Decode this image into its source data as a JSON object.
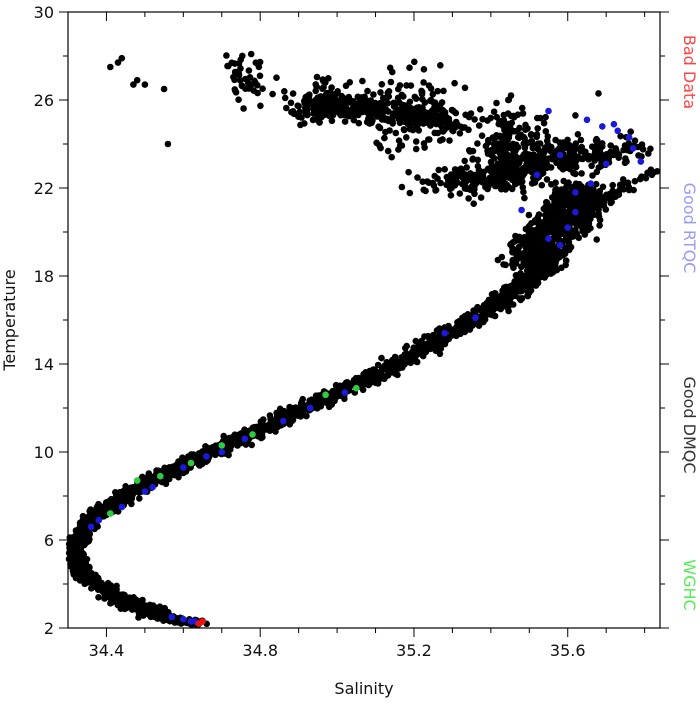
{
  "chart_data": {
    "type": "scatter",
    "xlabel": "Salinity",
    "ylabel": "Temperature",
    "xlim": [
      34.3,
      35.84
    ],
    "ylim": [
      2,
      30
    ],
    "xticks": [
      34.4,
      34.8,
      35.2,
      35.6
    ],
    "xtick_labels": [
      "34.4",
      "34.8",
      "35.2",
      "35.6"
    ],
    "yticks": [
      2,
      6,
      10,
      14,
      18,
      22,
      26,
      30
    ],
    "ytick_labels": [
      "2",
      "6",
      "10",
      "14",
      "18",
      "22",
      "26",
      "30"
    ],
    "x_minor_step": 0.1,
    "y_minor_step": 2,
    "grid": false,
    "legend_position": "right-side vertical",
    "legend": [
      {
        "label": "Bad Data",
        "color": "#ff4444"
      },
      {
        "label": "Good RTQC",
        "color": "#9a9aff"
      },
      {
        "label": "Good DMQC",
        "color": "#333333"
      },
      {
        "label": "WGHC",
        "color": "#55ee55"
      }
    ],
    "series": [
      {
        "name": "Good DMQC",
        "color": "#000000",
        "bands": [
          {
            "from": [
              34.64,
              2.2
            ],
            "to": [
              34.55,
              2.5
            ],
            "width": 0.05,
            "count": 90
          },
          {
            "from": [
              34.55,
              2.5
            ],
            "to": [
              34.42,
              3.4
            ],
            "width": 0.09,
            "count": 150
          },
          {
            "from": [
              34.42,
              3.4
            ],
            "to": [
              34.33,
              4.6
            ],
            "width": 0.06,
            "count": 140
          },
          {
            "from": [
              34.33,
              4.6
            ],
            "to": [
              34.32,
              5.8
            ],
            "width": 0.05,
            "count": 110
          },
          {
            "from": [
              34.32,
              5.8
            ],
            "to": [
              34.36,
              7.0
            ],
            "width": 0.06,
            "count": 110
          },
          {
            "from": [
              34.36,
              7.0
            ],
            "to": [
              34.55,
              9.0
            ],
            "width": 0.07,
            "count": 240
          },
          {
            "from": [
              34.55,
              9.0
            ],
            "to": [
              34.8,
              11.0
            ],
            "width": 0.08,
            "count": 260
          },
          {
            "from": [
              34.8,
              11.0
            ],
            "to": [
              35.1,
              13.5
            ],
            "width": 0.08,
            "count": 300
          },
          {
            "from": [
              35.1,
              13.5
            ],
            "to": [
              35.4,
              16.5
            ],
            "width": 0.08,
            "count": 300
          },
          {
            "from": [
              35.4,
              16.5
            ],
            "to": [
              35.55,
              18.5
            ],
            "width": 0.08,
            "count": 250
          },
          {
            "from": [
              35.5,
              18.5
            ],
            "to": [
              35.65,
              22.0
            ],
            "width": 0.16,
            "count": 650
          },
          {
            "from": [
              35.3,
              22.0
            ],
            "to": [
              35.7,
              24.0
            ],
            "width": 0.28,
            "count": 420
          },
          {
            "from": [
              34.9,
              26.0
            ],
            "to": [
              35.3,
              25.0
            ],
            "width": 0.22,
            "count": 280
          },
          {
            "from": [
              35.55,
              20.0
            ],
            "to": [
              35.82,
              22.8
            ],
            "width": 0.06,
            "count": 80
          }
        ],
        "clusters": [
          {
            "center": [
              34.76,
              27.0
            ],
            "spread": [
              0.06,
              1.3
            ],
            "count": 45
          },
          {
            "center": [
              34.98,
              26.0
            ],
            "spread": [
              0.09,
              1.2
            ],
            "count": 70
          },
          {
            "center": [
              35.2,
              25.5
            ],
            "spread": [
              0.13,
              1.9
            ],
            "count": 130
          },
          {
            "center": [
              35.45,
              24.2
            ],
            "spread": [
              0.1,
              1.6
            ],
            "count": 140
          }
        ],
        "points": [
          [
            34.41,
            27.5
          ],
          [
            34.43,
            27.7
          ],
          [
            34.44,
            27.9
          ],
          [
            34.47,
            26.7
          ],
          [
            34.48,
            26.9
          ],
          [
            34.5,
            26.7
          ],
          [
            34.55,
            26.5
          ],
          [
            34.56,
            24.0
          ],
          [
            35.68,
            26.3
          ],
          [
            35.62,
            25.3
          ],
          [
            35.82,
            22.7
          ],
          [
            35.56,
            19.3
          ]
        ]
      },
      {
        "name": "Good RTQC",
        "color": "#1a1adc",
        "points": [
          [
            35.55,
            25.5
          ],
          [
            35.65,
            25.1
          ],
          [
            35.73,
            24.6
          ],
          [
            35.77,
            23.8
          ],
          [
            35.79,
            23.2
          ],
          [
            35.72,
            24.9
          ],
          [
            35.76,
            24.3
          ],
          [
            35.55,
            19.7
          ],
          [
            35.6,
            20.2
          ],
          [
            35.48,
            21.0
          ],
          [
            35.52,
            22.6
          ],
          [
            35.62,
            21.8
          ],
          [
            35.7,
            23.1
          ],
          [
            35.66,
            22.2
          ],
          [
            35.58,
            23.5
          ],
          [
            35.69,
            24.8
          ],
          [
            35.58,
            19.4
          ],
          [
            35.62,
            20.9
          ],
          [
            34.36,
            6.6
          ],
          [
            34.38,
            6.9
          ],
          [
            34.44,
            7.5
          ],
          [
            34.5,
            8.2
          ],
          [
            34.52,
            8.4
          ],
          [
            34.6,
            9.3
          ],
          [
            34.66,
            9.8
          ],
          [
            34.7,
            10.0
          ],
          [
            34.76,
            10.6
          ],
          [
            34.86,
            11.4
          ],
          [
            34.93,
            12.0
          ],
          [
            35.02,
            12.7
          ],
          [
            35.28,
            15.4
          ],
          [
            35.36,
            16.1
          ],
          [
            34.6,
            2.4
          ],
          [
            34.62,
            2.3
          ],
          [
            34.57,
            2.5
          ],
          [
            34.63,
            2.3
          ]
        ]
      },
      {
        "name": "WGHC",
        "color": "#2ecc40",
        "points": [
          [
            34.48,
            8.7
          ],
          [
            34.54,
            8.9
          ],
          [
            34.7,
            10.3
          ],
          [
            34.78,
            10.8
          ],
          [
            34.97,
            12.6
          ],
          [
            35.05,
            12.9
          ],
          [
            34.41,
            7.2
          ],
          [
            34.62,
            9.5
          ]
        ]
      },
      {
        "name": "Bad Data",
        "color": "#ee1111",
        "points": [
          [
            34.64,
            2.2
          ],
          [
            34.65,
            2.3
          ]
        ]
      }
    ]
  }
}
